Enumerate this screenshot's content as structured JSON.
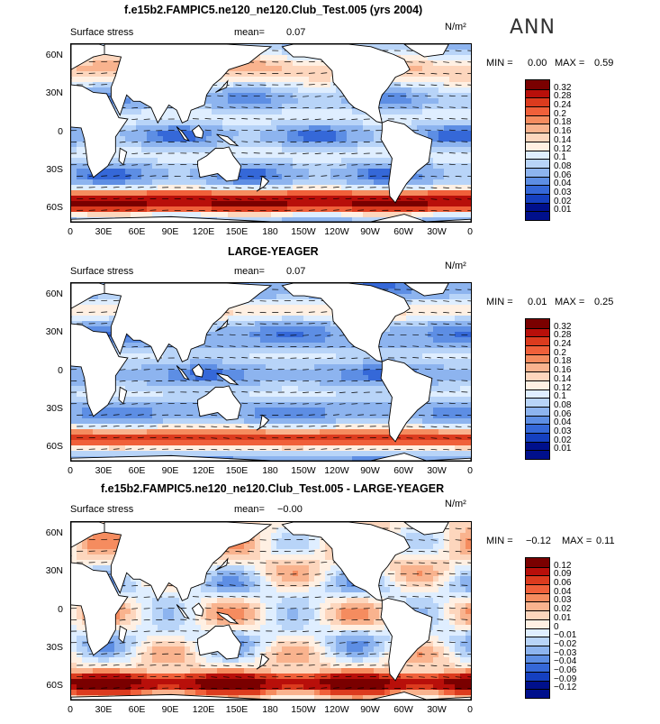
{
  "season": "ANN",
  "panels": [
    {
      "title": "f.e15b2.FAMPIC5.ne120_ne120.Club_Test.005 (yrs 2004)",
      "variable": "Surface stress",
      "mean_label": "mean=",
      "mean_value": "0.07",
      "units": "N/m²",
      "min_label": "MIN =",
      "min_value": "0.00",
      "max_label": "MAX =",
      "max_value": "0.59",
      "colorbar": [
        "0.32",
        "0.28",
        "0.24",
        "0.2",
        "0.18",
        "0.16",
        "0.14",
        "0.12",
        "0.1",
        "0.08",
        "0.06",
        "0.04",
        "0.03",
        "0.02",
        "0.01"
      ]
    },
    {
      "title": "LARGE-YEAGER",
      "variable": "Surface stress",
      "mean_label": "mean=",
      "mean_value": "0.07",
      "units": "N/m²",
      "min_label": "MIN =",
      "min_value": "0.01",
      "max_label": "MAX =",
      "max_value": "0.25",
      "colorbar": [
        "0.32",
        "0.28",
        "0.24",
        "0.2",
        "0.18",
        "0.16",
        "0.14",
        "0.12",
        "0.1",
        "0.08",
        "0.06",
        "0.04",
        "0.03",
        "0.02",
        "0.01"
      ]
    },
    {
      "title": "f.e15b2.FAMPIC5.ne120_ne120.Club_Test.005 - LARGE-YEAGER",
      "variable": "Surface stress",
      "mean_label": "mean=",
      "mean_value": "−0.00",
      "units": "N/m²",
      "min_label": "MIN =",
      "min_value": "−0.12",
      "max_label": "MAX =",
      "max_value": "0.11",
      "colorbar": [
        "0.12",
        "0.09",
        "0.06",
        "0.04",
        "0.03",
        "0.02",
        "0.01",
        "0",
        "−0.01",
        "−0.02",
        "−0.03",
        "−0.04",
        "−0.06",
        "−0.09",
        "−0.12"
      ]
    }
  ],
  "lat_ticks": [
    "60N",
    "30N",
    "0",
    "30S",
    "60S"
  ],
  "lon_ticks": [
    "0",
    "30E",
    "60E",
    "90E",
    "120E",
    "150E",
    "180",
    "150W",
    "120W",
    "90W",
    "60W",
    "30W",
    "0"
  ],
  "colors": [
    "#7a0000",
    "#b80f0a",
    "#dc3b1e",
    "#f0603a",
    "#f58c5f",
    "#f9b38e",
    "#fdd6bd",
    "#fff0e3",
    "#dfeeff",
    "#b8d4f8",
    "#8db4ef",
    "#5d8ee4",
    "#3568d8",
    "#1540c0",
    "#00108c"
  ],
  "chart_data": [
    {
      "type": "heatmap",
      "title": "f.e15b2.FAMPIC5.ne120_ne120.Club_Test.005 (yrs 2004)",
      "variable": "Surface stress",
      "units": "N/m²",
      "mean": 0.07,
      "min": 0.0,
      "max": 0.59,
      "ylim": [
        -70,
        70
      ],
      "xlim": [
        0,
        360
      ],
      "levels": [
        0.01,
        0.02,
        0.03,
        0.04,
        0.06,
        0.08,
        0.1,
        0.12,
        0.14,
        0.16,
        0.18,
        0.2,
        0.24,
        0.28,
        0.32
      ]
    },
    {
      "type": "heatmap",
      "title": "LARGE-YEAGER",
      "variable": "Surface stress",
      "units": "N/m²",
      "mean": 0.07,
      "min": 0.01,
      "max": 0.25,
      "ylim": [
        -70,
        70
      ],
      "xlim": [
        0,
        360
      ],
      "levels": [
        0.01,
        0.02,
        0.03,
        0.04,
        0.06,
        0.08,
        0.1,
        0.12,
        0.14,
        0.16,
        0.18,
        0.2,
        0.24,
        0.28,
        0.32
      ]
    },
    {
      "type": "heatmap",
      "title": "f.e15b2.FAMPIC5.ne120_ne120.Club_Test.005 - LARGE-YEAGER",
      "variable": "Surface stress",
      "units": "N/m²",
      "mean": -0.0,
      "min": -0.12,
      "max": 0.11,
      "ylim": [
        -70,
        70
      ],
      "xlim": [
        0,
        360
      ],
      "levels": [
        -0.12,
        -0.09,
        -0.06,
        -0.04,
        -0.03,
        -0.02,
        -0.01,
        0,
        0.01,
        0.02,
        0.03,
        0.04,
        0.06,
        0.09,
        0.12
      ]
    }
  ]
}
